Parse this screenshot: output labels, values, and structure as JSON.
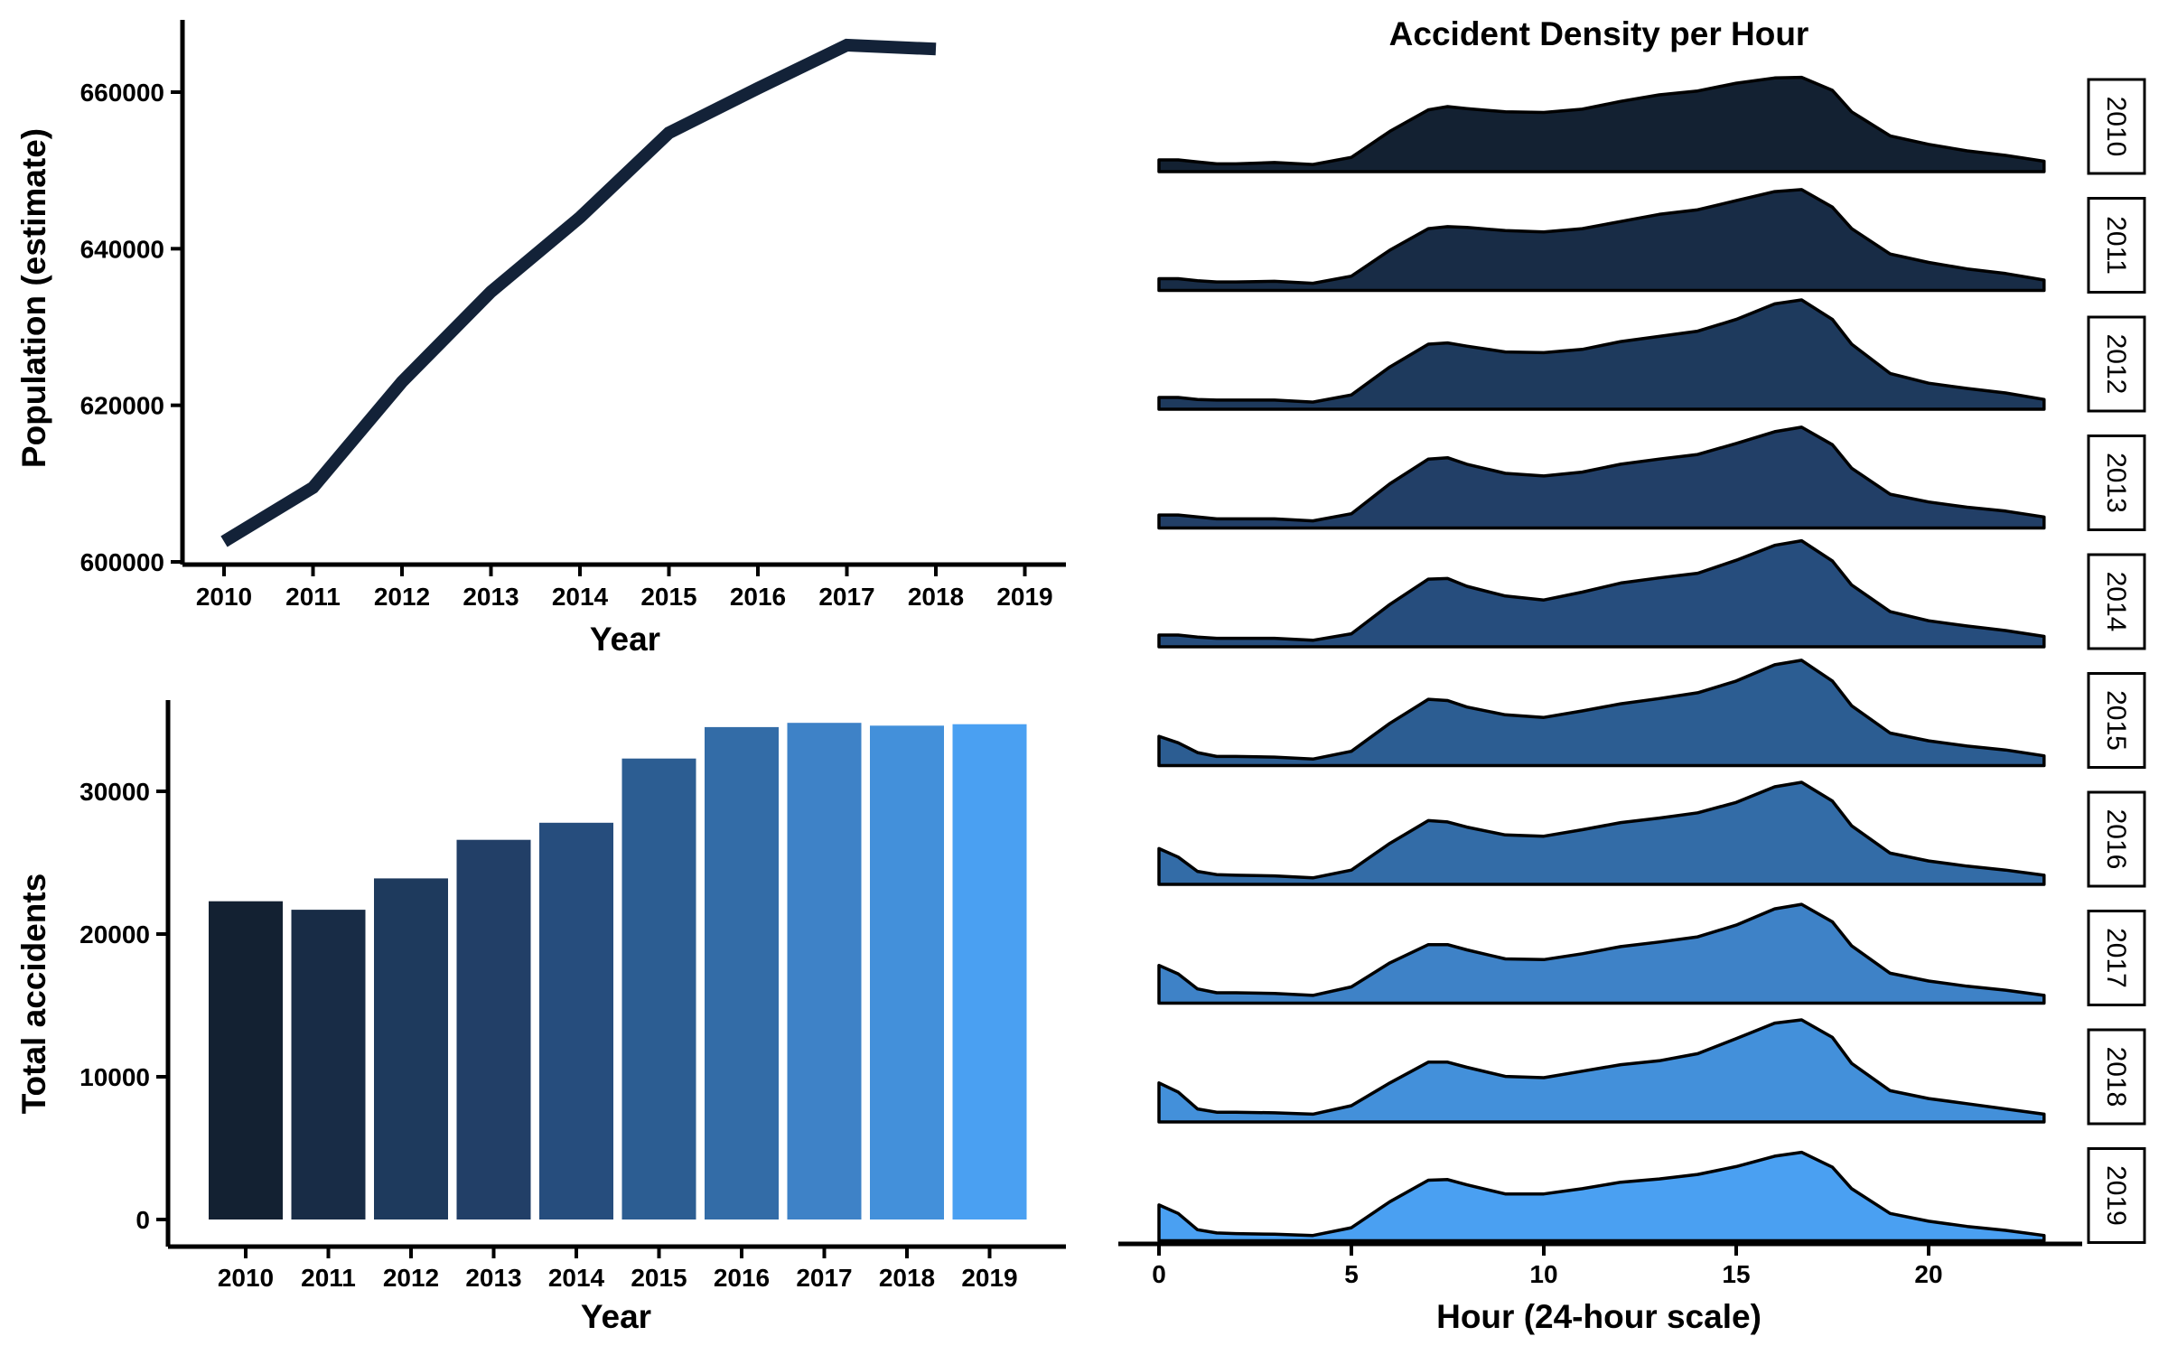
{
  "chart_data": [
    {
      "type": "line",
      "x": [
        2010,
        2011,
        2012,
        2013,
        2014,
        2015,
        2016,
        2017,
        2018
      ],
      "values": [
        602600,
        609500,
        623000,
        634500,
        644000,
        654800,
        660500,
        666000,
        665500
      ],
      "x_ticks": [
        "2010",
        "2011",
        "2012",
        "2013",
        "2014",
        "2015",
        "2016",
        "2017",
        "2018",
        "2019"
      ],
      "y_ticks": [
        "600000",
        "620000",
        "640000",
        "660000"
      ],
      "xlabel": "Year",
      "ylabel": "Population (estimate)",
      "color": "#132238",
      "grid": false
    },
    {
      "type": "bar",
      "categories": [
        "2010",
        "2011",
        "2012",
        "2013",
        "2014",
        "2015",
        "2016",
        "2017",
        "2018",
        "2019"
      ],
      "values": [
        22300,
        21700,
        23900,
        26600,
        27800,
        32300,
        34500,
        34800,
        34600,
        34700
      ],
      "colors": [
        "#132132",
        "#182c46",
        "#1e3a5d",
        "#223f67",
        "#264d7d",
        "#2c5d92",
        "#336ca7",
        "#3e82c7",
        "#4390da",
        "#4aa0f2"
      ],
      "y_ticks": [
        "0",
        "10000",
        "20000",
        "30000"
      ],
      "xlabel": "Year",
      "ylabel": "Total accidents",
      "grid": false
    },
    {
      "type": "area",
      "title": "Accident Density per Hour",
      "xlabel": "Hour (24-hour scale)",
      "x_ticks": [
        "0",
        "5",
        "10",
        "15",
        "20"
      ],
      "xlim": [
        0,
        23
      ],
      "facets": [
        "2010",
        "2011",
        "2012",
        "2013",
        "2014",
        "2015",
        "2016",
        "2017",
        "2018",
        "2019"
      ],
      "colors": [
        "#132132",
        "#182c46",
        "#1e3a5d",
        "#223f67",
        "#264d7d",
        "#2c5d92",
        "#336ca7",
        "#3e82c7",
        "#4390da",
        "#4aa0f2"
      ],
      "hours": [
        0,
        0.5,
        1,
        1.5,
        2,
        3,
        4,
        5,
        6,
        7,
        7.5,
        8,
        9,
        10,
        11,
        12,
        13,
        14,
        15,
        16,
        16.7,
        17.5,
        18,
        19,
        20,
        21,
        22,
        23
      ],
      "density": [
        [
          0.18,
          0.18,
          0.15,
          0.12,
          0.12,
          0.14,
          0.11,
          0.22,
          0.62,
          0.95,
          1.0,
          0.97,
          0.92,
          0.91,
          0.96,
          1.08,
          1.18,
          1.24,
          1.36,
          1.44,
          1.45,
          1.25,
          0.92,
          0.55,
          0.42,
          0.32,
          0.25,
          0.16
        ],
        [
          0.18,
          0.18,
          0.15,
          0.13,
          0.13,
          0.14,
          0.11,
          0.22,
          0.62,
          0.95,
          0.98,
          0.97,
          0.92,
          0.9,
          0.95,
          1.06,
          1.17,
          1.24,
          1.38,
          1.52,
          1.55,
          1.28,
          0.95,
          0.56,
          0.43,
          0.33,
          0.26,
          0.16
        ],
        [
          0.18,
          0.18,
          0.15,
          0.14,
          0.14,
          0.14,
          0.11,
          0.22,
          0.65,
          1.0,
          1.02,
          0.97,
          0.88,
          0.87,
          0.92,
          1.04,
          1.12,
          1.2,
          1.38,
          1.62,
          1.68,
          1.38,
          1.0,
          0.55,
          0.4,
          0.32,
          0.25,
          0.15
        ],
        [
          0.2,
          0.2,
          0.17,
          0.14,
          0.14,
          0.14,
          0.11,
          0.22,
          0.68,
          1.06,
          1.08,
          0.98,
          0.84,
          0.8,
          0.86,
          0.98,
          1.06,
          1.13,
          1.3,
          1.48,
          1.55,
          1.28,
          0.92,
          0.52,
          0.4,
          0.32,
          0.26,
          0.17
        ],
        [
          0.18,
          0.18,
          0.15,
          0.13,
          0.13,
          0.13,
          0.1,
          0.2,
          0.65,
          1.04,
          1.05,
          0.93,
          0.78,
          0.72,
          0.84,
          0.98,
          1.06,
          1.13,
          1.33,
          1.56,
          1.63,
          1.32,
          0.95,
          0.54,
          0.4,
          0.32,
          0.25,
          0.16
        ],
        [
          0.45,
          0.35,
          0.2,
          0.14,
          0.14,
          0.13,
          0.1,
          0.22,
          0.65,
          1.02,
          1.0,
          0.9,
          0.78,
          0.74,
          0.84,
          0.95,
          1.03,
          1.12,
          1.3,
          1.55,
          1.62,
          1.3,
          0.92,
          0.5,
          0.38,
          0.3,
          0.24,
          0.15
        ],
        [
          0.55,
          0.42,
          0.2,
          0.15,
          0.14,
          0.13,
          0.1,
          0.22,
          0.63,
          0.98,
          0.96,
          0.88,
          0.76,
          0.74,
          0.84,
          0.95,
          1.02,
          1.1,
          1.26,
          1.5,
          1.57,
          1.28,
          0.9,
          0.48,
          0.36,
          0.28,
          0.22,
          0.14
        ],
        [
          0.58,
          0.45,
          0.22,
          0.16,
          0.16,
          0.15,
          0.12,
          0.25,
          0.62,
          0.9,
          0.9,
          0.82,
          0.68,
          0.67,
          0.76,
          0.87,
          0.94,
          1.02,
          1.2,
          1.45,
          1.52,
          1.25,
          0.88,
          0.46,
          0.34,
          0.26,
          0.2,
          0.12
        ],
        [
          0.6,
          0.46,
          0.2,
          0.15,
          0.15,
          0.14,
          0.12,
          0.25,
          0.6,
          0.92,
          0.92,
          0.84,
          0.7,
          0.68,
          0.78,
          0.88,
          0.94,
          1.05,
          1.28,
          1.52,
          1.57,
          1.3,
          0.9,
          0.48,
          0.36,
          0.28,
          0.2,
          0.12
        ],
        [
          0.55,
          0.42,
          0.17,
          0.12,
          0.11,
          0.1,
          0.08,
          0.2,
          0.6,
          0.93,
          0.94,
          0.86,
          0.72,
          0.72,
          0.8,
          0.9,
          0.95,
          1.02,
          1.14,
          1.3,
          1.36,
          1.13,
          0.8,
          0.42,
          0.3,
          0.22,
          0.16,
          0.08
        ]
      ]
    }
  ]
}
